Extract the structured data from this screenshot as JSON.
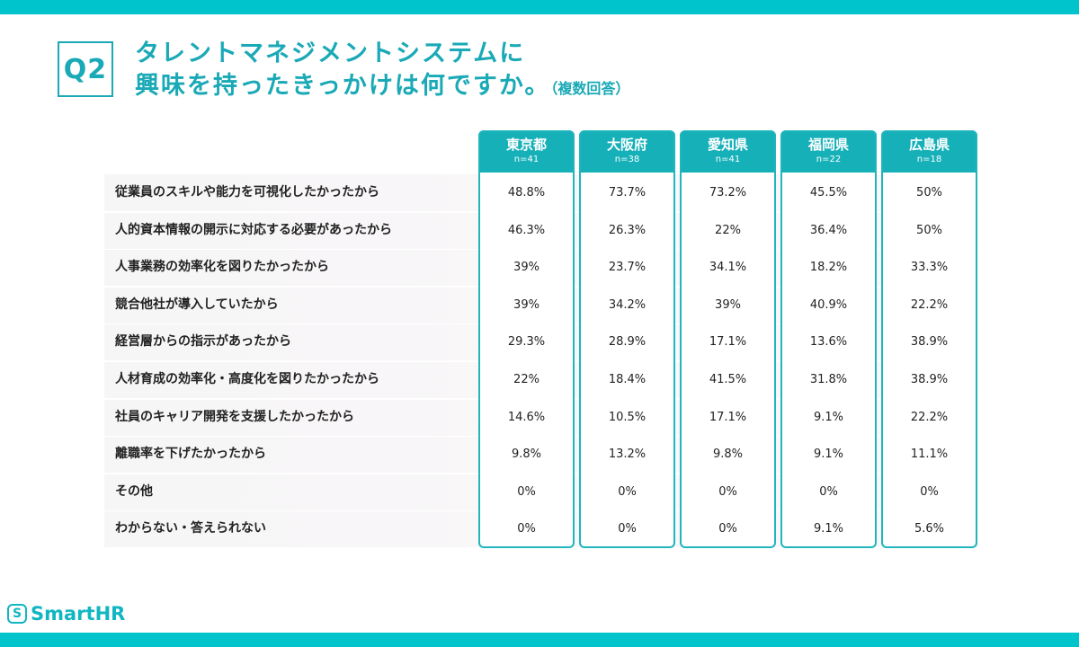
{
  "question": {
    "number": "Q2",
    "title_line1": "タレントマネジメントシステムに",
    "title_line2": "興味を持ったきっかけは何ですか。",
    "title_note": "（複数回答）"
  },
  "brand": {
    "logo_text": "SmartHR",
    "logo_icon": "smarthr-s-icon",
    "accent": "#00c4cc"
  },
  "chart_data": {
    "type": "table",
    "unit": "%",
    "columns": [
      {
        "name": "東京都",
        "n": "n=41"
      },
      {
        "name": "大阪府",
        "n": "n=38"
      },
      {
        "name": "愛知県",
        "n": "n=41"
      },
      {
        "name": "福岡県",
        "n": "n=22"
      },
      {
        "name": "広島県",
        "n": "n=18"
      }
    ],
    "rows": [
      {
        "label": "従業員のスキルや能力を可視化したかったから",
        "values": [
          "48.8%",
          "73.7%",
          "73.2%",
          "45.5%",
          "50%"
        ]
      },
      {
        "label": "人的資本情報の開示に対応する必要があったから",
        "values": [
          "46.3%",
          "26.3%",
          "22%",
          "36.4%",
          "50%"
        ]
      },
      {
        "label": "人事業務の効率化を図りたかったから",
        "values": [
          "39%",
          "23.7%",
          "34.1%",
          "18.2%",
          "33.3%"
        ]
      },
      {
        "label": "競合他社が導入していたから",
        "values": [
          "39%",
          "34.2%",
          "39%",
          "40.9%",
          "22.2%"
        ]
      },
      {
        "label": "経営層からの指示があったから",
        "values": [
          "29.3%",
          "28.9%",
          "17.1%",
          "13.6%",
          "38.9%"
        ]
      },
      {
        "label": "人材育成の効率化・高度化を図りたかったから",
        "values": [
          "22%",
          "18.4%",
          "41.5%",
          "31.8%",
          "38.9%"
        ]
      },
      {
        "label": "社員のキャリア開発を支援したかったから",
        "values": [
          "14.6%",
          "10.5%",
          "17.1%",
          "9.1%",
          "22.2%"
        ]
      },
      {
        "label": "離職率を下げたかったから",
        "values": [
          "9.8%",
          "13.2%",
          "9.8%",
          "9.1%",
          "11.1%"
        ]
      },
      {
        "label": "その他",
        "values": [
          "0%",
          "0%",
          "0%",
          "0%",
          "0%"
        ]
      },
      {
        "label": "わからない・答えられない",
        "values": [
          "0%",
          "0%",
          "0%",
          "9.1%",
          "5.6%"
        ]
      }
    ]
  }
}
